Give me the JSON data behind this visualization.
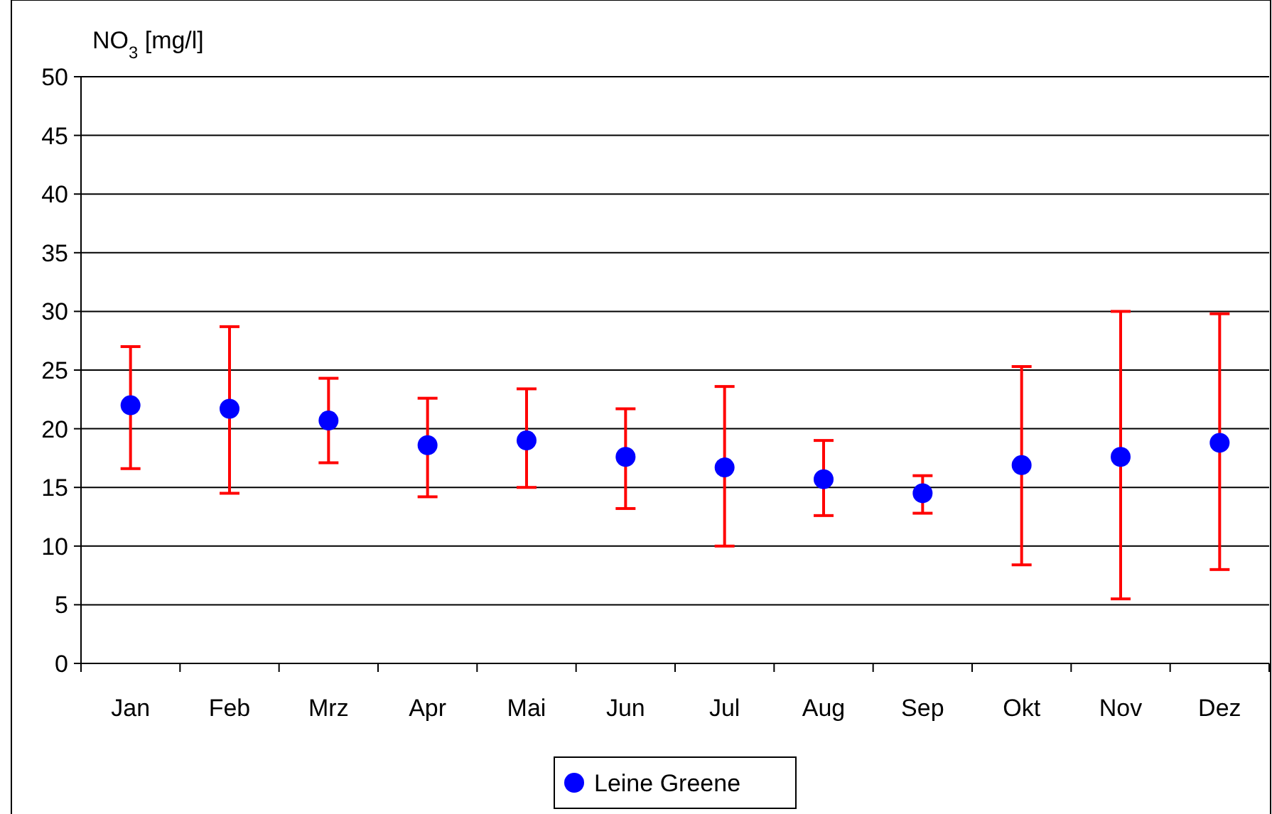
{
  "chart_data": {
    "type": "scatter",
    "ylabel": "NO$_{3}$ [mg/l]",
    "categories": [
      "Jan",
      "Feb",
      "Mrz",
      "Apr",
      "Mai",
      "Jun",
      "Jul",
      "Aug",
      "Sep",
      "Okt",
      "Nov",
      "Dez"
    ],
    "series": [
      {
        "name": "Leine Greene",
        "color": "#0000ff",
        "values": [
          22,
          21.7,
          20.7,
          18.6,
          19,
          17.6,
          16.7,
          15.7,
          14.5,
          16.9,
          17.6,
          18.8
        ],
        "errors": [
          [
            16.6,
            27
          ],
          [
            14.5,
            28.7
          ],
          [
            17.1,
            24.3
          ],
          [
            14.2,
            22.6
          ],
          [
            15,
            23.4
          ],
          [
            13.2,
            21.7
          ],
          [
            10,
            23.6
          ],
          [
            12.6,
            19
          ],
          [
            12.8,
            16
          ],
          [
            8.4,
            25.3
          ],
          [
            5.5,
            30
          ],
          [
            8,
            29.8
          ]
        ]
      }
    ],
    "ylim": [
      0,
      50
    ],
    "yticks": [
      0,
      5,
      10,
      15,
      20,
      25,
      30,
      35,
      40,
      45,
      50
    ],
    "grid": "y",
    "legend": "bottom",
    "marker": "circle"
  }
}
